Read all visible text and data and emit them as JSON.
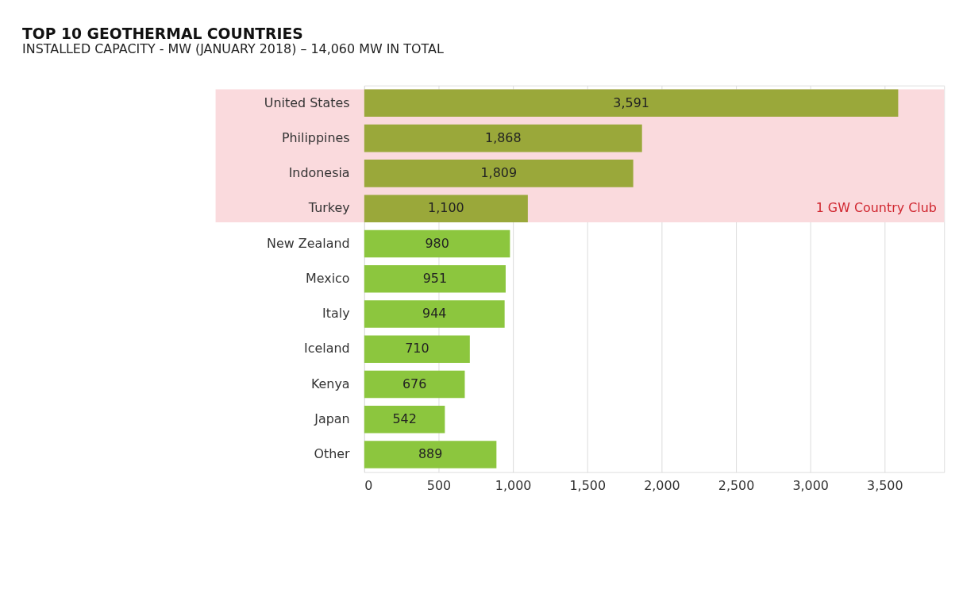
{
  "chart_data": {
    "type": "bar",
    "orientation": "horizontal",
    "title": "TOP 10 GEOTHERMAL COUNTRIES",
    "subtitle": "INSTALLED CAPACITY - MW (JANUARY 2018) – 14,060 MW IN TOTAL",
    "categories": [
      "United States",
      "Philippines",
      "Indonesia",
      "Turkey",
      "New Zealand",
      "Mexico",
      "Italy",
      "Iceland",
      "Kenya",
      "Japan",
      "Other"
    ],
    "values": [
      3591,
      1868,
      1809,
      1100,
      980,
      951,
      944,
      710,
      676,
      542,
      889
    ],
    "value_labels": [
      "3,591",
      "1,868",
      "1,809",
      "1,100",
      "980",
      "951",
      "944",
      "710",
      "676",
      "542",
      "889"
    ],
    "colors": [
      "#9aa83a",
      "#9aa83a",
      "#9aa83a",
      "#9aa83a",
      "#8cc63e",
      "#8cc63e",
      "#8cc63e",
      "#8cc63e",
      "#8cc63e",
      "#8cc63e",
      "#8cc63e"
    ],
    "xlim": [
      0,
      3900
    ],
    "xticks": [
      0,
      {
        "value": 500,
        "label": "500"
      },
      {
        "value": 1000,
        "label": "1,000"
      },
      {
        "value": 1500,
        "label": "1,500"
      },
      {
        "value": 2000,
        "label": "2,000"
      },
      {
        "value": 2500,
        "label": "2,500"
      },
      {
        "value": 3000,
        "label": "3,000"
      },
      {
        "value": 3500,
        "label": "3,500"
      }
    ],
    "grid": "x",
    "bands": [
      {
        "axis": "y",
        "from": "United States",
        "to": "Turkey",
        "label": "1 GW Country Club",
        "color": "#fadadd"
      }
    ]
  }
}
